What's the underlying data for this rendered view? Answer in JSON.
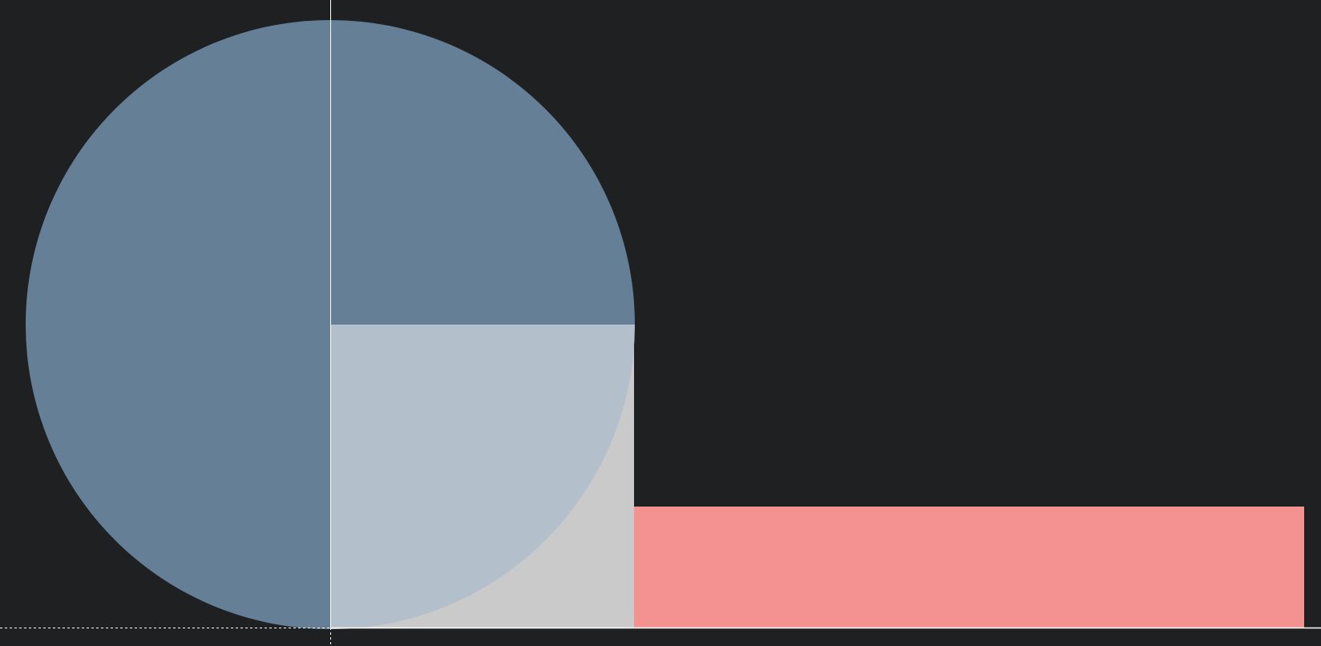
{
  "chart_data": {
    "type": "pie",
    "slices": [
      {
        "value": 0.5,
        "color": "#647f96"
      },
      {
        "value": 0.25,
        "color": "#647f96"
      },
      {
        "value": 0.25,
        "color": "#b3bfcb"
      }
    ],
    "extra_rects": [
      {
        "color": "#cacaca"
      },
      {
        "color": "#f49191"
      }
    ],
    "background": "#1f2022",
    "grid": false,
    "legend": "none"
  }
}
